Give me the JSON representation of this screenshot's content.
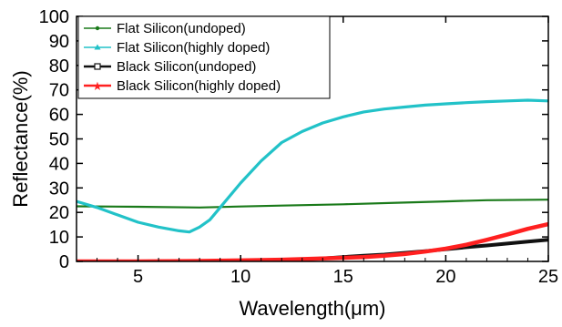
{
  "chart_data": {
    "type": "line",
    "xlabel": "Wavelength(μm)",
    "ylabel": "Reflectance(%)",
    "xlim": [
      2,
      25
    ],
    "ylim": [
      0,
      100
    ],
    "xticks": [
      5,
      10,
      15,
      20,
      25
    ],
    "yticks": [
      0,
      10,
      20,
      30,
      40,
      50,
      60,
      70,
      80,
      90,
      100
    ],
    "grid": false,
    "legend_position": "top-left",
    "series": [
      {
        "name": "Flat Silicon(undoped)",
        "color": "#1a7a1a",
        "marker": "dot",
        "x": [
          2,
          5,
          8,
          10,
          12,
          15,
          18,
          20,
          22,
          25
        ],
        "y": [
          22.5,
          22.3,
          22.0,
          22.4,
          22.8,
          23.3,
          24.0,
          24.5,
          25.0,
          25.2
        ]
      },
      {
        "name": "Flat Silicon(highly doped)",
        "color": "#22c2c8",
        "marker": "triangle",
        "x": [
          2,
          3,
          4,
          5,
          6,
          7,
          7.5,
          8,
          8.5,
          9,
          10,
          11,
          12,
          13,
          14,
          15,
          16,
          17,
          18,
          19,
          20,
          21,
          22,
          23,
          24,
          25
        ],
        "y": [
          24.5,
          22,
          19,
          16,
          14,
          12.5,
          12,
          14,
          17,
          22,
          32,
          41,
          48.5,
          53,
          56.5,
          59,
          61,
          62.2,
          63,
          63.8,
          64.3,
          64.8,
          65.2,
          65.5,
          65.8,
          65.5
        ]
      },
      {
        "name": "Black Silicon(undoped)",
        "color": "#111111",
        "marker": "square",
        "x": [
          2,
          5,
          8,
          10,
          12,
          14,
          15,
          16,
          17,
          18,
          19,
          20,
          21,
          22,
          23,
          24,
          25
        ],
        "y": [
          0,
          0,
          0.1,
          0.2,
          0.5,
          1.2,
          1.8,
          2.3,
          2.8,
          3.5,
          4.2,
          5.0,
          5.8,
          6.5,
          7.3,
          8.1,
          8.8
        ]
      },
      {
        "name": "Black Silicon(highly doped)",
        "color": "#ff2020",
        "marker": "star",
        "x": [
          2,
          5,
          8,
          10,
          12,
          14,
          15,
          16,
          17,
          18,
          19,
          20,
          21,
          22,
          23,
          24,
          25
        ],
        "y": [
          0,
          0,
          0.2,
          0.4,
          0.7,
          1.2,
          1.5,
          1.8,
          2.3,
          3.0,
          4.0,
          5.2,
          6.8,
          8.8,
          11.0,
          13.3,
          15.2
        ]
      }
    ]
  }
}
